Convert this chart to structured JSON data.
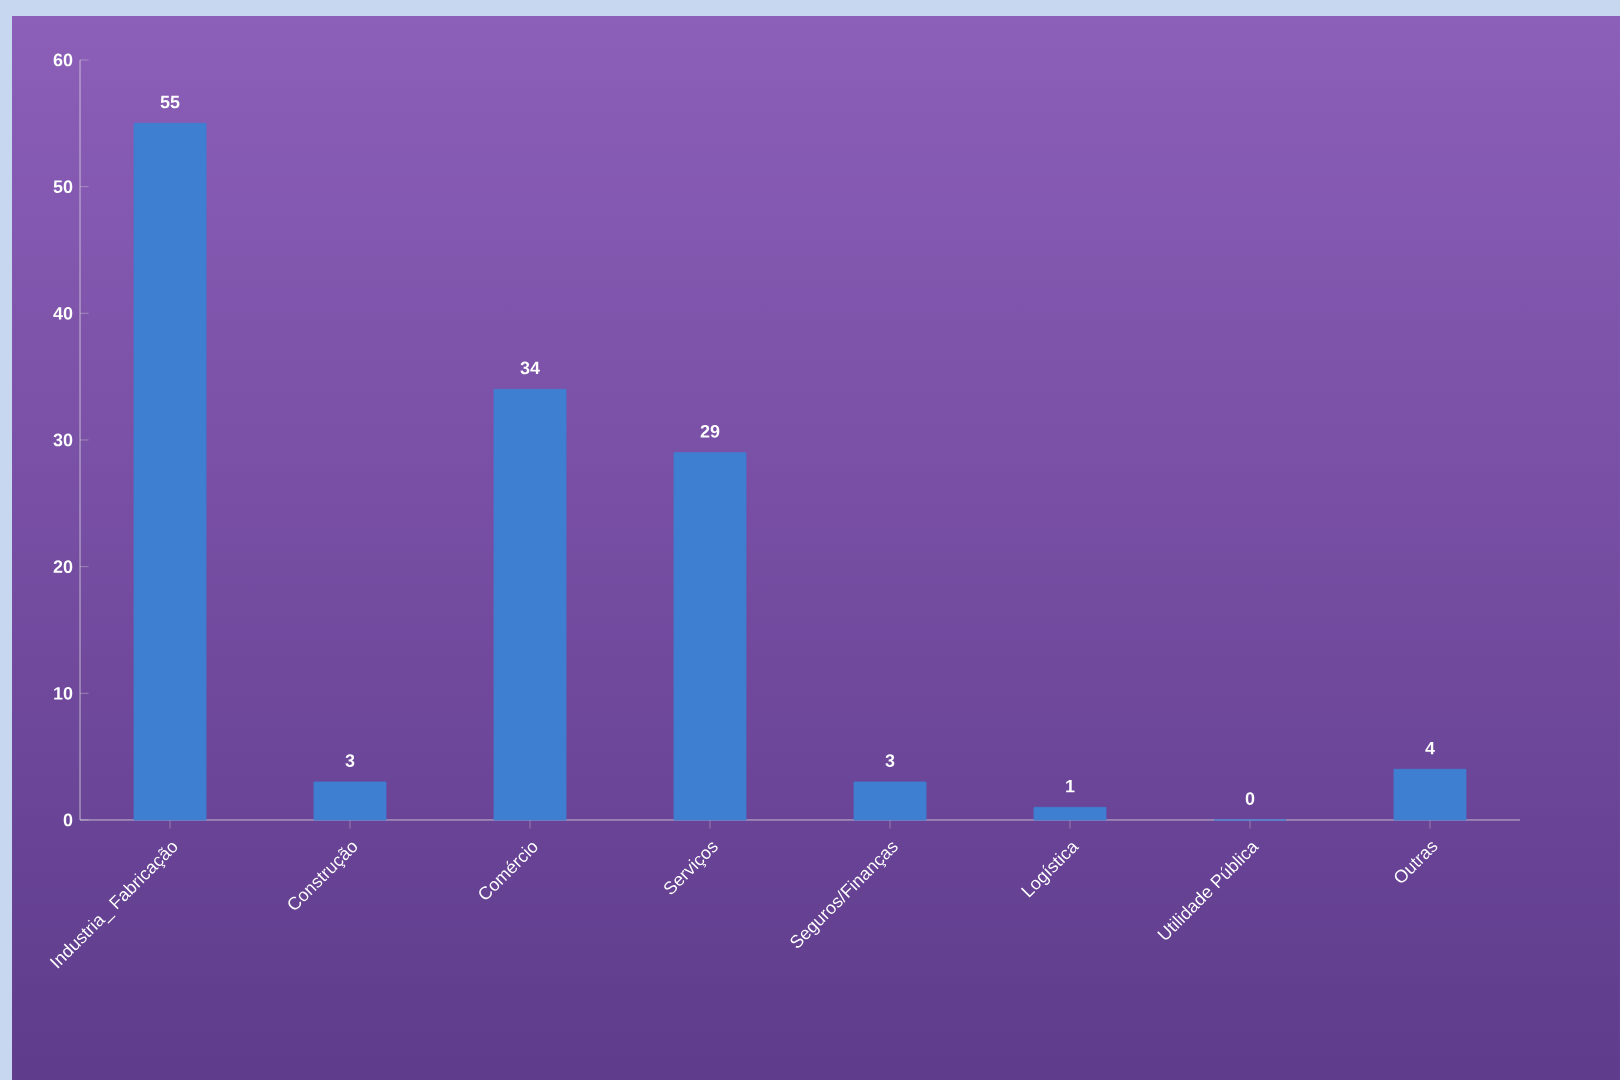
{
  "chart_data": {
    "type": "bar",
    "categories": [
      "Industria_ Fabricação",
      "Construção",
      "Comércio",
      "Serviços",
      "Seguros/Finanças",
      "Logística",
      "Utilidade Pública",
      "Outras"
    ],
    "values": [
      55,
      3,
      34,
      29,
      3,
      1,
      0,
      4
    ],
    "color": "#3f7fd2",
    "ylim": [
      0,
      60
    ],
    "yticks": [
      0,
      10,
      20,
      30,
      40,
      50,
      60
    ],
    "data_labels": true,
    "grid": false
  }
}
